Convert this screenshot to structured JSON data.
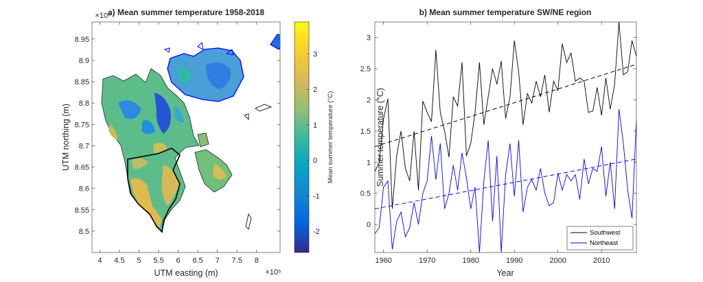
{
  "chart_data": [
    {
      "type": "heatmap",
      "title": "a) Mean summer temperature 1958-2018",
      "xlabel": "UTM easting (m)",
      "ylabel": "UTM northing (m)",
      "x_exponent": "×10⁵",
      "y_exponent": "×10⁶",
      "xlim": [
        3.8,
        8.6
      ],
      "ylim": [
        8.45,
        8.99
      ],
      "xticks": [
        "4",
        "4.5",
        "5",
        "5.5",
        "6",
        "6.5",
        "7",
        "7.5",
        "8"
      ],
      "yticks": [
        "8.5",
        "8.55",
        "8.6",
        "8.65",
        "8.7",
        "8.75",
        "8.8",
        "8.85",
        "8.9",
        "8.95"
      ],
      "colorbar": {
        "label": "Mean summer temperature (°C)",
        "range": [
          -2.6,
          3.9
        ],
        "ticks": [
          "3",
          "2",
          "1",
          "0",
          "-1",
          "-2"
        ],
        "colormap": "parula"
      },
      "colors": {
        "region_outline": "#000000",
        "coast_outline": "#0000ff"
      }
    },
    {
      "type": "line",
      "title": "b) Mean summer temperature SW/NE region",
      "xlabel": "Year",
      "ylabel": "Summer temperature (°C)",
      "xlim": [
        1958,
        2018
      ],
      "ylim": [
        -0.45,
        3.25
      ],
      "xticks": [
        "1960",
        "1970",
        "1980",
        "1990",
        "2000",
        "2010"
      ],
      "yticks": [
        "0",
        "0.5",
        "1",
        "1.5",
        "2",
        "2.5",
        "3"
      ],
      "legend_position": "bottom-right",
      "x": [
        1958,
        1959,
        1960,
        1961,
        1962,
        1963,
        1964,
        1965,
        1966,
        1967,
        1968,
        1969,
        1970,
        1971,
        1972,
        1973,
        1974,
        1975,
        1976,
        1977,
        1978,
        1979,
        1980,
        1981,
        1982,
        1983,
        1984,
        1985,
        1986,
        1987,
        1988,
        1989,
        1990,
        1991,
        1992,
        1993,
        1994,
        1995,
        1996,
        1997,
        1998,
        1999,
        2000,
        2001,
        2002,
        2003,
        2004,
        2005,
        2006,
        2007,
        2008,
        2009,
        2010,
        2011,
        2012,
        2013,
        2014,
        2015,
        2016,
        2017,
        2018
      ],
      "series": [
        {
          "name": "Southwest",
          "color": "#000000",
          "values": [
            0.85,
            1.0,
            1.7,
            2.02,
            0.25,
            1.1,
            1.5,
            0.9,
            0.7,
            1.5,
            0.55,
            1.98,
            1.8,
            1.65,
            2.8,
            1.8,
            1.5,
            1.08,
            2.05,
            1.9,
            2.6,
            1.1,
            1.3,
            1.8,
            2.6,
            1.6,
            2.05,
            2.5,
            2.25,
            2.62,
            1.7,
            2.05,
            2.95,
            2.45,
            1.6,
            2.1,
            1.95,
            2.3,
            2.05,
            2.4,
            1.8,
            2.3,
            2.15,
            2.9,
            2.6,
            2.75,
            2.3,
            2.35,
            2.3,
            1.8,
            1.82,
            2.2,
            1.75,
            2.35,
            1.85,
            2.25,
            3.25,
            2.4,
            2.45,
            2.95,
            2.7
          ],
          "trend": [
            1.25,
            2.57
          ]
        },
        {
          "name": "Northeast",
          "color": "#0000ff",
          "values": [
            -0.15,
            -0.05,
            0.6,
            0.7,
            -0.4,
            0.05,
            0.2,
            -0.2,
            -0.05,
            0.35,
            0.0,
            0.5,
            0.7,
            1.42,
            0.72,
            1.3,
            0.25,
            0.5,
            0.95,
            0.55,
            1.15,
            0.75,
            0.25,
            0.6,
            -0.45,
            0.7,
            1.35,
            0.05,
            1.1,
            -0.45,
            0.8,
            1.3,
            0.45,
            1.35,
            0.2,
            0.6,
            0.72,
            0.55,
            0.9,
            0.5,
            0.3,
            0.35,
            0.82,
            0.55,
            0.8,
            0.7,
            0.8,
            0.4,
            1.05,
            0.65,
            0.9,
            0.85,
            1.25,
            0.45,
            1.0,
            0.25,
            1.85,
            1.3,
            0.55,
            0.1,
            1.68
          ],
          "trend": [
            0.25,
            1.05
          ]
        }
      ]
    }
  ]
}
